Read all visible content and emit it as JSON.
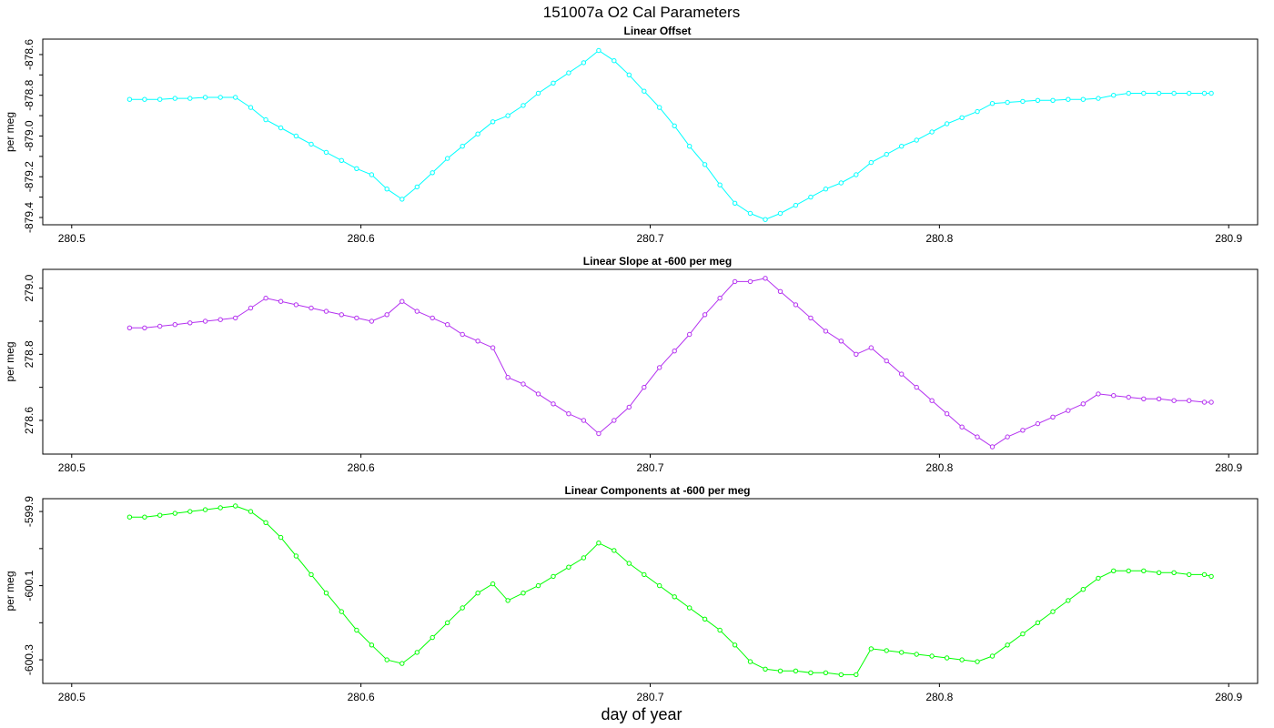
{
  "title": "151007a   O2 Cal Parameters",
  "xlabel": "day of year",
  "chart_data": [
    {
      "type": "line",
      "title": "Linear Offset",
      "ylabel": "per meg",
      "color": "#00ffff",
      "xlim": [
        280.49,
        280.91
      ],
      "ylim": [
        -879.4,
        -878.56
      ],
      "xticks": [
        "280.5",
        "280.6",
        "280.7",
        "280.8",
        "280.9"
      ],
      "yticks": [
        "-878.6",
        "-878.8",
        "-879.0",
        "-879.2",
        "-879.4"
      ],
      "x": [
        280.52,
        280.5252,
        280.5305,
        280.5357,
        280.5409,
        280.5462,
        280.5514,
        280.5566,
        280.5619,
        280.5671,
        280.5723,
        280.5776,
        280.5828,
        280.588,
        280.5933,
        280.5985,
        280.6037,
        280.609,
        280.6142,
        280.6194,
        280.6247,
        280.6299,
        280.6351,
        280.6404,
        280.6456,
        280.6508,
        280.6561,
        280.6613,
        280.6665,
        280.6718,
        280.677,
        280.6822,
        280.6875,
        280.6927,
        280.6979,
        280.7032,
        280.7084,
        280.7136,
        280.7189,
        280.7241,
        280.7293,
        280.7346,
        280.7398,
        280.745,
        280.7503,
        280.7555,
        280.7607,
        280.766,
        280.7712,
        280.7764,
        280.7817,
        280.7869,
        280.7921,
        280.7974,
        280.8026,
        280.8078,
        280.8131,
        280.8183,
        280.8235,
        280.8288,
        280.834,
        280.8392,
        280.8445,
        280.8497,
        280.8549,
        280.8602,
        280.8654,
        280.8706,
        280.8759,
        280.8811,
        280.8863,
        280.8916,
        280.894
      ],
      "y": [
        -878.82,
        -878.82,
        -878.82,
        -878.815,
        -878.815,
        -878.81,
        -878.81,
        -878.81,
        -878.86,
        -878.92,
        -878.96,
        -879.0,
        -879.04,
        -879.08,
        -879.12,
        -879.16,
        -879.19,
        -879.26,
        -879.31,
        -879.25,
        -879.18,
        -879.11,
        -879.05,
        -878.99,
        -878.93,
        -878.9,
        -878.85,
        -878.79,
        -878.74,
        -878.69,
        -878.64,
        -878.58,
        -878.63,
        -878.7,
        -878.78,
        -878.86,
        -878.95,
        -879.05,
        -879.14,
        -879.24,
        -879.33,
        -879.38,
        -879.41,
        -879.38,
        -879.34,
        -879.3,
        -879.26,
        -879.23,
        -879.19,
        -879.13,
        -879.09,
        -879.05,
        -879.02,
        -878.98,
        -878.94,
        -878.91,
        -878.88,
        -878.84,
        -878.835,
        -878.83,
        -878.825,
        -878.825,
        -878.82,
        -878.82,
        -878.815,
        -878.8,
        -878.79,
        -878.79,
        -878.79,
        -878.79,
        -878.79,
        -878.79,
        -878.79
      ]
    },
    {
      "type": "line",
      "title": "Linear Slope at -600 per meg",
      "ylabel": "per meg",
      "color": "#b431f0",
      "xlim": [
        280.49,
        280.91
      ],
      "ylim": [
        278.52,
        279.035
      ],
      "xticks": [
        "280.5",
        "280.6",
        "280.7",
        "280.8",
        "280.9"
      ],
      "yticks": [
        "279.0",
        "278.8",
        "278.6"
      ],
      "x": [
        280.52,
        280.5252,
        280.5305,
        280.5357,
        280.5409,
        280.5462,
        280.5514,
        280.5566,
        280.5619,
        280.5671,
        280.5723,
        280.5776,
        280.5828,
        280.588,
        280.5933,
        280.5985,
        280.6037,
        280.609,
        280.6142,
        280.6194,
        280.6247,
        280.6299,
        280.6351,
        280.6404,
        280.6456,
        280.6508,
        280.6561,
        280.6613,
        280.6665,
        280.6718,
        280.677,
        280.6822,
        280.6875,
        280.6927,
        280.6979,
        280.7032,
        280.7084,
        280.7136,
        280.7189,
        280.7241,
        280.7293,
        280.7346,
        280.7398,
        280.745,
        280.7503,
        280.7555,
        280.7607,
        280.766,
        280.7712,
        280.7764,
        280.7817,
        280.7869,
        280.7921,
        280.7974,
        280.8026,
        280.8078,
        280.8131,
        280.8183,
        280.8235,
        280.8288,
        280.834,
        280.8392,
        280.8445,
        280.8497,
        280.8549,
        280.8602,
        280.8654,
        280.8706,
        280.8759,
        280.8811,
        280.8863,
        280.8916,
        280.894
      ],
      "y": [
        278.88,
        278.88,
        278.885,
        278.89,
        278.895,
        278.9,
        278.905,
        278.91,
        278.94,
        278.97,
        278.96,
        278.95,
        278.94,
        278.93,
        278.92,
        278.91,
        278.9,
        278.92,
        278.96,
        278.93,
        278.91,
        278.89,
        278.86,
        278.84,
        278.82,
        278.73,
        278.71,
        278.68,
        278.65,
        278.62,
        278.6,
        278.56,
        278.6,
        278.64,
        278.7,
        278.76,
        278.81,
        278.86,
        278.92,
        278.97,
        279.02,
        279.02,
        279.03,
        278.99,
        278.95,
        278.91,
        278.87,
        278.84,
        278.8,
        278.82,
        278.78,
        278.74,
        278.7,
        278.66,
        278.62,
        278.58,
        278.55,
        278.52,
        278.55,
        278.57,
        278.59,
        278.61,
        278.63,
        278.65,
        278.68,
        278.675,
        278.67,
        278.665,
        278.665,
        278.66,
        278.66,
        278.655,
        278.655
      ]
    },
    {
      "type": "line",
      "title": "Linear Components at -600 per meg",
      "ylabel": "per meg",
      "color": "#00ff00",
      "xlim": [
        280.49,
        280.91
      ],
      "ylim": [
        -600.344,
        -599.885
      ],
      "xticks": [
        "280.5",
        "280.6",
        "280.7",
        "280.8",
        "280.9"
      ],
      "yticks": [
        "-599.9",
        "-600.1",
        "-600.3"
      ],
      "x": [
        280.52,
        280.5252,
        280.5305,
        280.5357,
        280.5409,
        280.5462,
        280.5514,
        280.5566,
        280.5619,
        280.5671,
        280.5723,
        280.5776,
        280.5828,
        280.588,
        280.5933,
        280.5985,
        280.6037,
        280.609,
        280.6142,
        280.6194,
        280.6247,
        280.6299,
        280.6351,
        280.6404,
        280.6456,
        280.6508,
        280.6561,
        280.6613,
        280.6665,
        280.6718,
        280.677,
        280.6822,
        280.6875,
        280.6927,
        280.6979,
        280.7032,
        280.7084,
        280.7136,
        280.7189,
        280.7241,
        280.7293,
        280.7346,
        280.7398,
        280.745,
        280.7503,
        280.7555,
        280.7607,
        280.766,
        280.7712,
        280.7764,
        280.7817,
        280.7869,
        280.7921,
        280.7974,
        280.8026,
        280.8078,
        280.8131,
        280.8183,
        280.8235,
        280.8288,
        280.834,
        280.8392,
        280.8445,
        280.8497,
        280.8549,
        280.8602,
        280.8654,
        280.8706,
        280.8759,
        280.8811,
        280.8863,
        280.8916,
        280.894
      ],
      "y": [
        -599.915,
        -599.915,
        -599.91,
        -599.905,
        -599.9,
        -599.895,
        -599.89,
        -599.885,
        -599.9,
        -599.93,
        -599.97,
        -600.02,
        -600.07,
        -600.12,
        -600.17,
        -600.22,
        -600.26,
        -600.3,
        -600.31,
        -600.28,
        -600.24,
        -600.2,
        -600.16,
        -600.12,
        -600.095,
        -600.14,
        -600.12,
        -600.1,
        -600.075,
        -600.05,
        -600.025,
        -599.985,
        -600.005,
        -600.04,
        -600.07,
        -600.1,
        -600.13,
        -600.16,
        -600.19,
        -600.22,
        -600.26,
        -600.305,
        -600.325,
        -600.33,
        -600.33,
        -600.335,
        -600.335,
        -600.34,
        -600.34,
        -600.27,
        -600.275,
        -600.28,
        -600.285,
        -600.29,
        -600.295,
        -600.3,
        -600.305,
        -600.29,
        -600.26,
        -600.23,
        -600.2,
        -600.17,
        -600.14,
        -600.11,
        -600.08,
        -600.06,
        -600.06,
        -600.06,
        -600.065,
        -600.065,
        -600.07,
        -600.07,
        -600.075
      ]
    }
  ]
}
